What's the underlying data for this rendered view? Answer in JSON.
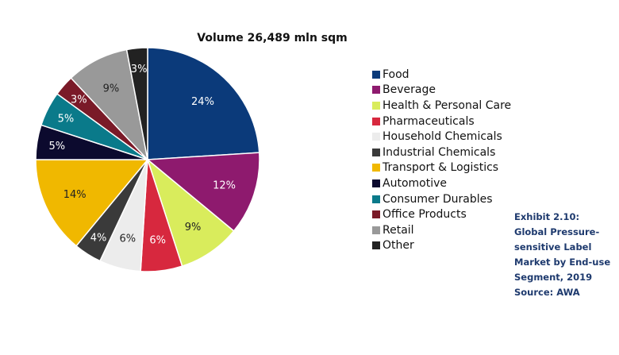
{
  "chart_data": {
    "type": "pie",
    "title": "Volume 26,489 mln sqm",
    "legend_position": "right",
    "start": "top, clockwise",
    "slices": [
      {
        "name": "Food",
        "value": 24,
        "label": "24%",
        "color": "#0b3a7a"
      },
      {
        "name": "Beverage",
        "value": 12,
        "label": "12%",
        "color": "#8e1a6e"
      },
      {
        "name": "Health & Personal Care",
        "value": 9,
        "label": "9%",
        "color": "#d9ec5c"
      },
      {
        "name": "Pharmaceuticals",
        "value": 6,
        "label": "6%",
        "color": "#d7283e"
      },
      {
        "name": "Household Chemicals",
        "value": 6,
        "label": "6%",
        "color": "#ececec"
      },
      {
        "name": "Industrial Chemicals",
        "value": 4,
        "label": "4%",
        "color": "#3a3a3a"
      },
      {
        "name": "Transport & Logistics",
        "value": 14,
        "label": "14%",
        "color": "#f0b800"
      },
      {
        "name": "Automotive",
        "value": 5,
        "label": "5%",
        "color": "#0c0a2e"
      },
      {
        "name": "Consumer Durables",
        "value": 5,
        "label": "5%",
        "color": "#0a7a8a"
      },
      {
        "name": "Office Products",
        "value": 3,
        "label": "3%",
        "color": "#7a1a28"
      },
      {
        "name": "Retail",
        "value": 9,
        "label": "9%",
        "color": "#999999"
      },
      {
        "name": "Other",
        "value": 3,
        "label": "3%",
        "color": "#222222"
      }
    ]
  },
  "caption": "Exhibit 2.10: Global Pressure-sensitive Label Market by End-use Segment, 2019",
  "source": "Source: AWA"
}
